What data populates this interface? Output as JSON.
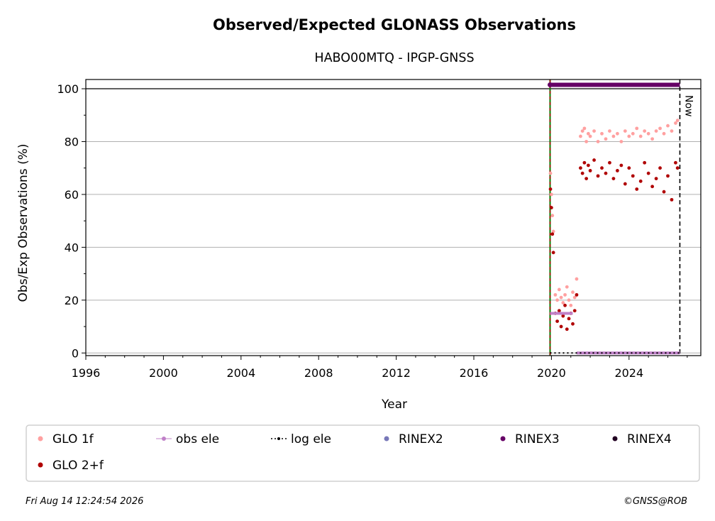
{
  "chart_data": {
    "type": "scatter",
    "title": "Observed/Expected GLONASS Observations",
    "subtitle": "HABO00MTQ - IPGP-GNSS",
    "xlabel": "Year",
    "ylabel": "Obs/Exp Observations (%)",
    "xlim": [
      1996,
      2027.7
    ],
    "ylim": [
      -1,
      103.5
    ],
    "x_ticks": [
      "1996",
      "2000",
      "2004",
      "2008",
      "2012",
      "2016",
      "2020",
      "2024"
    ],
    "y_ticks": [
      "0",
      "20",
      "40",
      "60",
      "80",
      "100"
    ],
    "grid": "horizontal",
    "reference_line_y": 100,
    "now_label": "Now",
    "now_x": 2026.62,
    "start_x": 2019.93,
    "legend_position": "below",
    "legend": [
      {
        "label": "GLO 1f",
        "marker": "dot",
        "color": "#ffa0a0"
      },
      {
        "label": "obs ele",
        "marker": "line-dot",
        "color": "#c080c8"
      },
      {
        "label": "log ele",
        "marker": "dotted-line",
        "color": "#000000"
      },
      {
        "label": "RINEX2",
        "marker": "dot",
        "color": "#7878b8"
      },
      {
        "label": "RINEX3",
        "marker": "dot",
        "color": "#660066"
      },
      {
        "label": "RINEX4",
        "marker": "dot",
        "color": "#220022"
      },
      {
        "label": "GLO 2+f",
        "marker": "dot",
        "color": "#b00000"
      }
    ],
    "series": [
      {
        "name": "GLO 1f",
        "color": "#ffa0a0",
        "x": [
          2019.95,
          2020.0,
          2020.05,
          2020.1,
          2020.2,
          2020.3,
          2020.4,
          2020.5,
          2020.6,
          2020.7,
          2020.8,
          2020.9,
          2021.0,
          2021.1,
          2021.2,
          2021.3,
          2021.5,
          2021.6,
          2021.7,
          2021.8,
          2021.9,
          2022.0,
          2022.2,
          2022.4,
          2022.6,
          2022.8,
          2023.0,
          2023.2,
          2023.4,
          2023.6,
          2023.8,
          2024.0,
          2024.2,
          2024.4,
          2024.6,
          2024.8,
          2025.0,
          2025.2,
          2025.4,
          2025.6,
          2025.8,
          2026.0,
          2026.2,
          2026.4,
          2026.5
        ],
        "y": [
          68,
          60,
          52,
          46,
          22,
          20,
          24,
          21,
          19,
          22,
          25,
          20,
          18,
          23,
          21,
          28,
          82,
          84,
          85,
          80,
          83,
          82,
          84,
          80,
          83,
          81,
          84,
          82,
          83,
          80,
          84,
          82,
          83,
          85,
          82,
          84,
          83,
          81,
          84,
          85,
          83,
          86,
          84,
          87,
          88
        ]
      },
      {
        "name": "GLO 2+f",
        "color": "#b00000",
        "x": [
          2019.95,
          2020.0,
          2020.05,
          2020.1,
          2020.2,
          2020.3,
          2020.4,
          2020.5,
          2020.6,
          2020.7,
          2020.8,
          2020.9,
          2021.0,
          2021.1,
          2021.2,
          2021.3,
          2021.5,
          2021.6,
          2021.7,
          2021.8,
          2021.9,
          2022.0,
          2022.2,
          2022.4,
          2022.6,
          2022.8,
          2023.0,
          2023.2,
          2023.4,
          2023.6,
          2023.8,
          2024.0,
          2024.2,
          2024.4,
          2024.6,
          2024.8,
          2025.0,
          2025.2,
          2025.4,
          2025.6,
          2025.8,
          2026.0,
          2026.2,
          2026.4,
          2026.5
        ],
        "y": [
          62,
          55,
          45,
          38,
          15,
          12,
          16,
          10,
          14,
          18,
          9,
          13,
          15,
          11,
          16,
          22,
          70,
          68,
          72,
          66,
          71,
          69,
          73,
          67,
          70,
          68,
          72,
          66,
          69,
          71,
          64,
          70,
          67,
          62,
          65,
          72,
          68,
          63,
          66,
          70,
          61,
          67,
          58,
          72,
          70
        ]
      },
      {
        "name": "obs ele",
        "color": "#c080c8",
        "segments": [
          {
            "x": [
              2019.93,
              2021.1
            ],
            "y": [
              15,
              15
            ]
          },
          {
            "x": [
              2021.3,
              2026.62
            ],
            "y": [
              0,
              0
            ]
          }
        ]
      },
      {
        "name": "log ele",
        "color": "#000000",
        "segments": [
          {
            "x": [
              2019.93,
              2026.62
            ],
            "y": [
              0,
              0
            ]
          }
        ]
      },
      {
        "name": "RINEX3",
        "color": "#660066",
        "segments": [
          {
            "x": [
              2019.93,
              2026.62
            ],
            "y": [
              101.5,
              101.5
            ]
          }
        ]
      }
    ]
  },
  "footer": {
    "timestamp": "Fri Aug 14 12:24:54 2026",
    "credit": "©GNSS@ROB"
  }
}
